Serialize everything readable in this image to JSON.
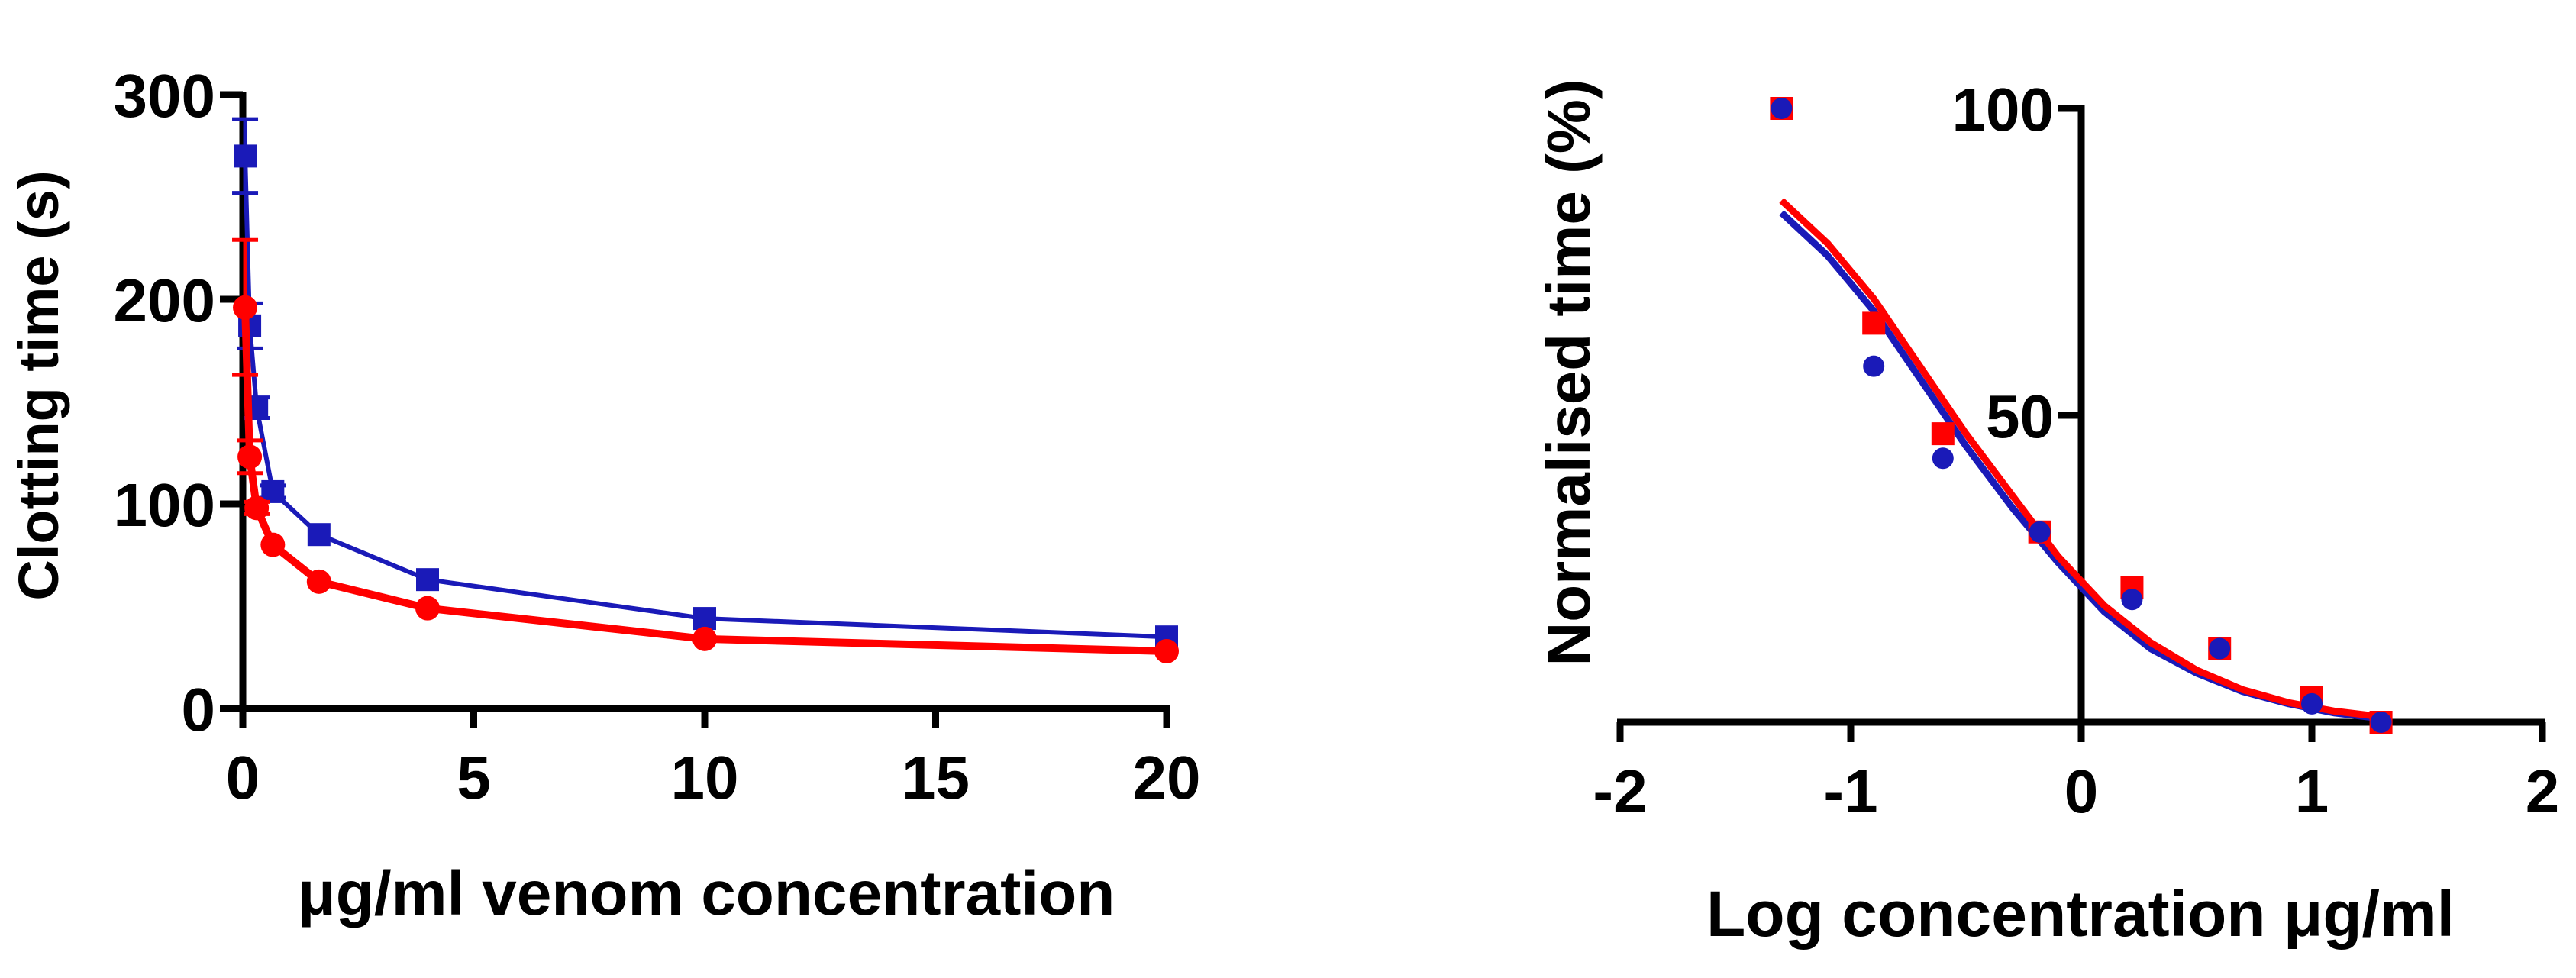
{
  "colors": {
    "blue": "#1a1ab8",
    "red": "#ff0000",
    "axis": "#000000"
  },
  "chart_data": [
    {
      "type": "line",
      "title": "",
      "xlabel": "μg/ml venom concentration",
      "ylabel": "Clotting time (s)",
      "xlim": [
        0,
        20
      ],
      "ylim": [
        0,
        300
      ],
      "x_ticks": [
        "0",
        "5",
        "10",
        "15",
        "20"
      ],
      "y_ticks": [
        "0",
        "100",
        "200",
        "300"
      ],
      "series": [
        {
          "name": "blue series (squares)",
          "color": "blue",
          "marker": "square",
          "x": [
            0.05,
            0.15,
            0.3,
            0.65,
            1.65,
            4,
            10,
            20
          ],
          "y": [
            270,
            187,
            147,
            106,
            85,
            63,
            44,
            35
          ],
          "err": [
            18,
            11,
            5,
            3,
            2,
            2,
            1,
            1
          ]
        },
        {
          "name": "red series (circles)",
          "color": "red",
          "marker": "circle",
          "x": [
            0.05,
            0.15,
            0.3,
            0.65,
            1.65,
            4,
            10,
            20
          ],
          "y": [
            196,
            123,
            98,
            80,
            62,
            49,
            34,
            28
          ],
          "err": [
            33,
            8,
            3,
            2,
            2,
            2,
            1,
            1
          ]
        }
      ]
    },
    {
      "type": "scatter",
      "title": "",
      "xlabel": "Log concentration μg/ml",
      "ylabel": "Normalised time (%)",
      "xlim": [
        -2,
        2
      ],
      "ylim": [
        0,
        100
      ],
      "x_ticks": [
        "-2",
        "-1",
        "0",
        "1",
        "2"
      ],
      "y_ticks": [
        "50",
        "100"
      ],
      "series": [
        {
          "name": "blue points and fit",
          "color": "blue",
          "marker": "circle",
          "x": [
            -1.3,
            -0.9,
            -0.6,
            -0.18,
            0.22,
            0.6,
            1.0,
            1.3
          ],
          "y": [
            100,
            58,
            43,
            31,
            20,
            12,
            3,
            0
          ],
          "fit_x": [
            -1.3,
            -1.1,
            -0.9,
            -0.7,
            -0.5,
            -0.3,
            -0.1,
            0.1,
            0.3,
            0.5,
            0.7,
            0.9,
            1.1,
            1.3
          ],
          "fit_y": [
            83,
            76,
            67,
            56,
            45,
            35,
            26,
            18,
            12,
            8,
            5,
            3,
            1.5,
            0.6
          ]
        },
        {
          "name": "red points and fit",
          "color": "red",
          "marker": "square",
          "x": [
            -1.3,
            -0.9,
            -0.6,
            -0.18,
            0.22,
            0.6,
            1.0,
            1.3
          ],
          "y": [
            100,
            65,
            47,
            31,
            22,
            12,
            4,
            0
          ],
          "fit_x": [
            -1.3,
            -1.1,
            -0.9,
            -0.7,
            -0.5,
            -0.3,
            -0.1,
            0.1,
            0.3,
            0.5,
            0.7,
            0.9,
            1.1,
            1.3
          ],
          "fit_y": [
            85,
            78,
            69,
            58,
            47,
            37,
            27,
            19,
            13,
            8.5,
            5.3,
            3.2,
            1.8,
            0.9
          ]
        }
      ]
    }
  ]
}
